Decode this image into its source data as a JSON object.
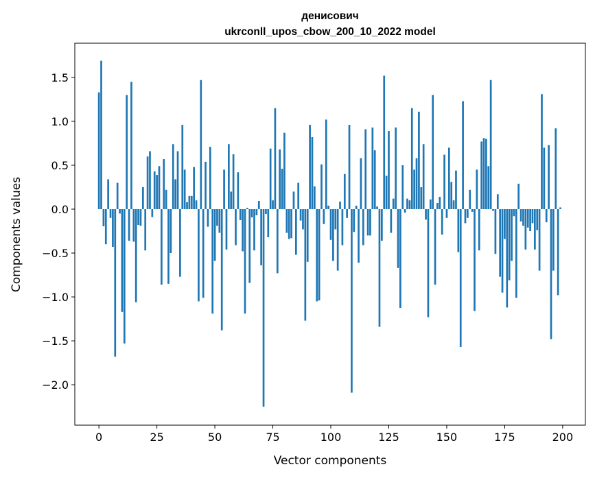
{
  "chart_data": {
    "type": "bar",
    "title": "денисович",
    "subtitle": "ukrconll_upos_cbow_200_10_2022 model",
    "xlabel": "Vector components",
    "ylabel": "Components values",
    "xlim": [
      -10.4,
      209.8
    ],
    "ylim": [
      -2.46,
      1.89
    ],
    "xticks": [
      0,
      25,
      50,
      75,
      100,
      125,
      150,
      175,
      200
    ],
    "xtick_labels": [
      "0",
      "25",
      "50",
      "75",
      "100",
      "125",
      "150",
      "175",
      "200"
    ],
    "yticks": [
      -2.0,
      -1.5,
      -1.0,
      -0.5,
      0.0,
      0.5,
      1.0,
      1.5
    ],
    "ytick_labels": [
      "−2.0",
      "−1.5",
      "−1.0",
      "−0.5",
      "0.0",
      "0.5",
      "1.0",
      "1.5"
    ],
    "grid": false,
    "bar_color": "#1f77b4",
    "values": [
      1.33,
      1.69,
      -0.195,
      -0.4,
      0.34,
      -0.1,
      -0.43,
      -1.68,
      0.3,
      -0.05,
      -1.17,
      -1.53,
      1.3,
      -0.36,
      1.45,
      -0.37,
      -1.06,
      -0.18,
      -0.19,
      0.25,
      -0.47,
      0.6,
      0.66,
      -0.09,
      0.43,
      0.39,
      0.49,
      -0.86,
      0.57,
      0.22,
      -0.85,
      -0.5,
      0.74,
      0.34,
      0.66,
      -0.77,
      0.96,
      0.45,
      0.08,
      0.15,
      0.15,
      0.48,
      0.1,
      -1.05,
      1.47,
      -1.01,
      0.54,
      -0.2,
      0.71,
      -1.19,
      -0.59,
      -0.19,
      -0.27,
      -1.38,
      0.45,
      -0.46,
      0.74,
      0.2,
      0.625,
      -0.41,
      0.42,
      -0.125,
      -0.48,
      -1.19,
      0.016,
      -0.84,
      -0.094,
      -0.47,
      -0.07,
      0.094,
      -0.64,
      -2.25,
      -0.055,
      -0.32,
      0.69,
      0.1,
      1.15,
      -0.73,
      0.68,
      0.46,
      0.87,
      -0.27,
      -0.34,
      -0.33,
      0.2,
      -0.52,
      0.3,
      -0.13,
      -0.23,
      -1.27,
      -0.6,
      0.96,
      0.82,
      0.26,
      -1.05,
      -1.04,
      0.51,
      -0.17,
      1.02,
      0.04,
      -0.35,
      -0.59,
      -0.23,
      -0.7,
      0.086,
      -0.41,
      0.4,
      -0.1,
      0.96,
      -2.09,
      -0.26,
      0.04,
      -0.61,
      0.58,
      -0.41,
      0.91,
      -0.3,
      -0.3,
      0.93,
      0.67,
      0.03,
      -1.34,
      -0.36,
      1.52,
      0.38,
      0.89,
      -0.27,
      0.12,
      0.93,
      -0.67,
      -1.125,
      0.5,
      -0.04,
      0.12,
      0.1,
      1.15,
      0.45,
      0.58,
      1.11,
      0.25,
      0.74,
      -0.12,
      -1.23,
      0.11,
      1.3,
      -0.86,
      0.07,
      0.14,
      -0.29,
      0.62,
      -0.1,
      0.7,
      0.31,
      0.1,
      0.44,
      -0.49,
      -1.57,
      1.23,
      -0.16,
      -0.1,
      0.22,
      -0.03,
      -1.16,
      0.45,
      -0.47,
      0.77,
      0.81,
      0.8,
      0.49,
      1.47,
      -0.02,
      -0.51,
      0.17,
      -0.77,
      -0.95,
      -0.34,
      -1.12,
      -0.81,
      -0.59,
      -0.08,
      -1.01,
      0.29,
      -0.14,
      -0.19,
      -0.46,
      -0.21,
      -0.25,
      -0.16,
      -0.46,
      -0.24,
      -0.7,
      1.31,
      0.7,
      -0.15,
      0.73,
      -1.48,
      -0.7,
      0.92,
      -0.98,
      0.02
    ]
  }
}
